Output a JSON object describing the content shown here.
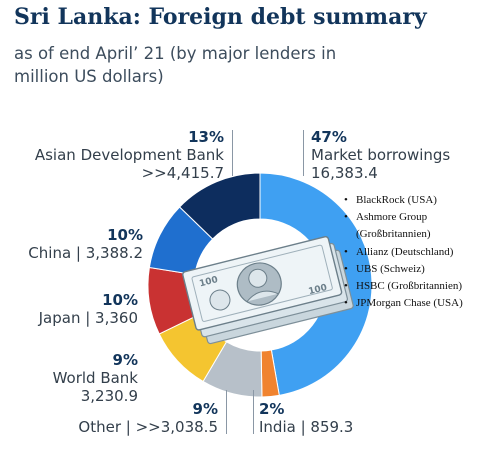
{
  "header": {
    "title": "Sri Lanka: Foreign debt summary",
    "subtitle": "as of end April’ 21 (by major lenders in million US dollars)"
  },
  "colors": {
    "title": "#12355b",
    "market": "#3fa0f2",
    "india": "#f0832f",
    "other": "#b7c0c9",
    "world_bank": "#f4c530",
    "japan": "#c93232",
    "china": "#1f6fcf",
    "adb": "#0d2d5e"
  },
  "labels": {
    "market": {
      "pct": "47%",
      "name": "Market borrowings",
      "value": "16,383.4"
    },
    "adb": {
      "pct": "13%",
      "name": "Asian Development Bank",
      "value": ">>4,415.7"
    },
    "china": {
      "pct": "10%",
      "name": "China | 3,388.2"
    },
    "japan": {
      "pct": "10%",
      "name": "Japan | 3,360"
    },
    "world_bank": {
      "pct": "9%",
      "name": "World Bank",
      "value": "3,230.9"
    },
    "other": {
      "pct": "9%",
      "name": "Other |  >>3,038.5"
    },
    "india": {
      "pct": "2%",
      "name": "India | 859.3"
    }
  },
  "banknote_icon": "dollar-banknote-stack",
  "legend_items": [
    "BlackRock (USA)",
    "Ashmore Group (Großbritannien)",
    "Allianz (Deutschland)",
    "UBS (Schweiz)",
    "HSBC (Großbritannien)",
    "JPMorgan Chase (USA)"
  ],
  "chart_data": {
    "type": "pie",
    "title": "Sri Lanka: Foreign debt summary",
    "subtitle": "as of end April’ 21 (by major lenders in million US dollars)",
    "categories": [
      "Market borrowings",
      "India",
      "Other",
      "World Bank",
      "Japan",
      "China",
      "Asian Development Bank"
    ],
    "values": [
      16383.4,
      859.3,
      3038.5,
      3230.9,
      3360,
      3388.2,
      4415.7
    ],
    "percentages": [
      47,
      2,
      9,
      9,
      10,
      10,
      13
    ],
    "hole": "donut",
    "legend": "right"
  }
}
